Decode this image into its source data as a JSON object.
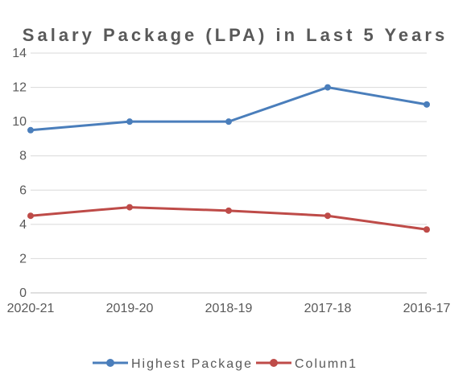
{
  "chart_data": {
    "type": "line",
    "title": "Salary Package (LPA) in Last 5 Years",
    "categories": [
      "2020-21",
      "2019-20",
      "2018-19",
      "2017-18",
      "2016-17"
    ],
    "ylim": [
      0,
      14
    ],
    "y_ticks": [
      "0",
      "2",
      "4",
      "6",
      "8",
      "10",
      "12",
      "14"
    ],
    "grid": true,
    "legend_position": "bottom",
    "series": [
      {
        "name": "Highest Package",
        "values": [
          9.5,
          10,
          10,
          12,
          11
        ],
        "color": "#4a7ebb"
      },
      {
        "name": "Column1",
        "values": [
          4.5,
          5,
          4.8,
          4.5,
          3.7
        ],
        "color": "#be4b48"
      }
    ]
  }
}
